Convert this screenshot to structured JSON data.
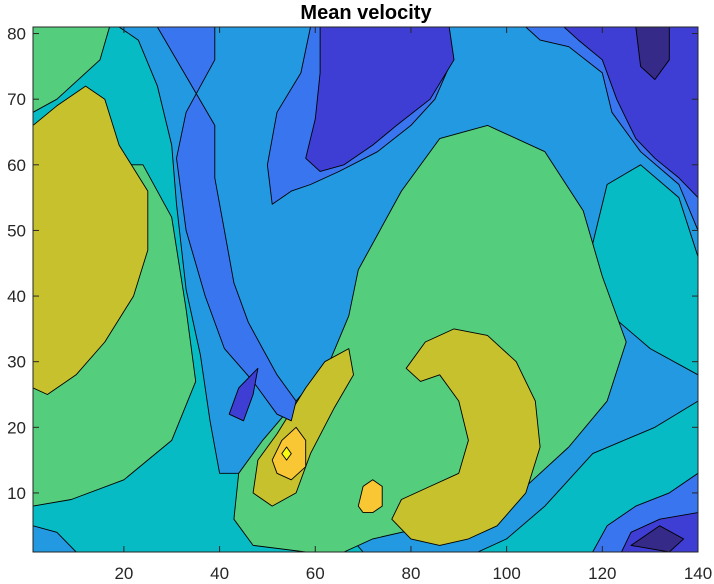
{
  "chart_data": {
    "type": "contour",
    "title": "Mean velocity",
    "xlabel": "",
    "ylabel": "",
    "xlim": [
      1,
      140
    ],
    "ylim": [
      1,
      81
    ],
    "xticks": [
      "20",
      "40",
      "60",
      "80",
      "100",
      "120",
      "140"
    ],
    "yticks": [
      "10",
      "20",
      "30",
      "40",
      "50",
      "60",
      "70",
      "80"
    ],
    "xtick_values": [
      20,
      40,
      60,
      80,
      100,
      120,
      140
    ],
    "ytick_values": [
      10,
      20,
      30,
      40,
      50,
      60,
      70,
      80
    ],
    "grid": false,
    "colormap": "parula",
    "levels": [
      {
        "level": 1,
        "color": "#352a87"
      },
      {
        "level": 2,
        "color": "#3e3dd4"
      },
      {
        "level": 3,
        "color": "#3a75f0"
      },
      {
        "level": 4,
        "color": "#2299e0"
      },
      {
        "level": 5,
        "color": "#07bbc4"
      },
      {
        "level": 6,
        "color": "#54cd7c"
      },
      {
        "level": 7,
        "color": "#c8c12e"
      },
      {
        "level": 8,
        "color": "#f9c733"
      },
      {
        "level": 9,
        "color": "#f9fb0e"
      }
    ],
    "regions": [
      {
        "level": 5,
        "points": [
          [
            1,
            81
          ],
          [
            140,
            81
          ],
          [
            140,
            1
          ],
          [
            1,
            1
          ]
        ]
      },
      {
        "level": 4,
        "points": [
          [
            19,
            81
          ],
          [
            140,
            81
          ],
          [
            140,
            46
          ],
          [
            136,
            55
          ],
          [
            128,
            60
          ],
          [
            121,
            57
          ],
          [
            118,
            48
          ],
          [
            122,
            37
          ],
          [
            130,
            32
          ],
          [
            140,
            28
          ],
          [
            140,
            24
          ],
          [
            131,
            20
          ],
          [
            118,
            16
          ],
          [
            108,
            8
          ],
          [
            100,
            3
          ],
          [
            94,
            1
          ],
          [
            70,
            1
          ],
          [
            64,
            6
          ],
          [
            56,
            10
          ],
          [
            48,
            13
          ],
          [
            40,
            13
          ],
          [
            38,
            21
          ],
          [
            36,
            31
          ],
          [
            33,
            41
          ],
          [
            31,
            54
          ],
          [
            30,
            63
          ],
          [
            27,
            72
          ],
          [
            23,
            79
          ]
        ]
      },
      {
        "level": 4,
        "points": [
          [
            1,
            1
          ],
          [
            10,
            1
          ],
          [
            6,
            4
          ],
          [
            1,
            5
          ]
        ]
      },
      {
        "level": 6,
        "points": [
          [
            1,
            81
          ],
          [
            17,
            81
          ],
          [
            15,
            76
          ],
          [
            6,
            70
          ],
          [
            1,
            68
          ]
        ]
      },
      {
        "level": 6,
        "points": [
          [
            1,
            60
          ],
          [
            10,
            60
          ],
          [
            24,
            60
          ],
          [
            30,
            52
          ],
          [
            33,
            38
          ],
          [
            35,
            27
          ],
          [
            30,
            18
          ],
          [
            20,
            12
          ],
          [
            9,
            9
          ],
          [
            1,
            8
          ]
        ]
      },
      {
        "level": 6,
        "points": [
          [
            69,
            44
          ],
          [
            78,
            56
          ],
          [
            86,
            64
          ],
          [
            96,
            66
          ],
          [
            108,
            62
          ],
          [
            116,
            53
          ],
          [
            120,
            43
          ],
          [
            125,
            33
          ],
          [
            121,
            24
          ],
          [
            113,
            17
          ],
          [
            104,
            11
          ],
          [
            95,
            7
          ],
          [
            84,
            5
          ],
          [
            72,
            3
          ],
          [
            66,
            1
          ],
          [
            58,
            1
          ],
          [
            47,
            2
          ],
          [
            43,
            6
          ],
          [
            44,
            13
          ],
          [
            49,
            18
          ],
          [
            56,
            24
          ],
          [
            63,
            30
          ],
          [
            67,
            37
          ]
        ]
      },
      {
        "level": 7,
        "points": [
          [
            1,
            66
          ],
          [
            6,
            69
          ],
          [
            12,
            72
          ],
          [
            16,
            70
          ],
          [
            19,
            63
          ],
          [
            25,
            56
          ],
          [
            25,
            47
          ],
          [
            22,
            40
          ],
          [
            16,
            33
          ],
          [
            10,
            28
          ],
          [
            4,
            25
          ],
          [
            1,
            26
          ]
        ]
      },
      {
        "level": 7,
        "points": [
          [
            79,
            29
          ],
          [
            83,
            33
          ],
          [
            89,
            35
          ],
          [
            96,
            34
          ],
          [
            102,
            30
          ],
          [
            106,
            24
          ],
          [
            107,
            17
          ],
          [
            104,
            10
          ],
          [
            98,
            5
          ],
          [
            92,
            3
          ],
          [
            86,
            2
          ],
          [
            80,
            3
          ],
          [
            76,
            6
          ],
          [
            78,
            9
          ],
          [
            84,
            11
          ],
          [
            90,
            13
          ],
          [
            92,
            18
          ],
          [
            90,
            24
          ],
          [
            86,
            28
          ],
          [
            82,
            27
          ]
        ]
      },
      {
        "level": 7,
        "points": [
          [
            48,
            15
          ],
          [
            52,
            19
          ],
          [
            58,
            26
          ],
          [
            62,
            30
          ],
          [
            67,
            32
          ],
          [
            68,
            28
          ],
          [
            64,
            23
          ],
          [
            59,
            16
          ],
          [
            56,
            10
          ],
          [
            51,
            8
          ],
          [
            47,
            10
          ]
        ]
      },
      {
        "level": 8,
        "points": [
          [
            51,
            15
          ],
          [
            53,
            18
          ],
          [
            56,
            20
          ],
          [
            58,
            18
          ],
          [
            58,
            14
          ],
          [
            55,
            12
          ],
          [
            52,
            13
          ]
        ]
      },
      {
        "level": 8,
        "points": [
          [
            69,
            8
          ],
          [
            70,
            11
          ],
          [
            72,
            12
          ],
          [
            74,
            11
          ],
          [
            74,
            8
          ],
          [
            72,
            7
          ],
          [
            70,
            7
          ]
        ]
      },
      {
        "level": 9,
        "points": [
          [
            53,
            16
          ],
          [
            54,
            17
          ],
          [
            55,
            16
          ],
          [
            54,
            15
          ]
        ]
      },
      {
        "level": 3,
        "points": [
          [
            27,
            81
          ],
          [
            39,
            81
          ],
          [
            39,
            76
          ],
          [
            33,
            68
          ],
          [
            31,
            61
          ],
          [
            33,
            50
          ],
          [
            37,
            40
          ],
          [
            41,
            32
          ],
          [
            47,
            27
          ],
          [
            52,
            22
          ],
          [
            55,
            21
          ],
          [
            56,
            24
          ],
          [
            52,
            28
          ],
          [
            49,
            32
          ],
          [
            46,
            36
          ],
          [
            43,
            42
          ],
          [
            41,
            50
          ],
          [
            39,
            58
          ],
          [
            39,
            66
          ]
        ]
      },
      {
        "level": 3,
        "points": [
          [
            59,
            81
          ],
          [
            86,
            81
          ],
          [
            88,
            75
          ],
          [
            85,
            70
          ],
          [
            80,
            66
          ],
          [
            73,
            62
          ],
          [
            65,
            59
          ],
          [
            59,
            57
          ],
          [
            55,
            56
          ],
          [
            51,
            54
          ],
          [
            50,
            60
          ],
          [
            52,
            68
          ],
          [
            57,
            74
          ]
        ]
      },
      {
        "level": 3,
        "points": [
          [
            104,
            81
          ],
          [
            140,
            81
          ],
          [
            140,
            50
          ],
          [
            136,
            57
          ],
          [
            128,
            62
          ],
          [
            122,
            68
          ],
          [
            120,
            74
          ],
          [
            113,
            78
          ],
          [
            107,
            79
          ]
        ]
      },
      {
        "level": 3,
        "points": [
          [
            118,
            1
          ],
          [
            140,
            1
          ],
          [
            140,
            13
          ],
          [
            134,
            10
          ],
          [
            127,
            8
          ],
          [
            121,
            5
          ]
        ]
      },
      {
        "level": 2,
        "points": [
          [
            61,
            81
          ],
          [
            88,
            81
          ],
          [
            89,
            76
          ],
          [
            84,
            70
          ],
          [
            77,
            66
          ],
          [
            72,
            63
          ],
          [
            66,
            60
          ],
          [
            61,
            59
          ],
          [
            58,
            61
          ],
          [
            60,
            67
          ],
          [
            61,
            74
          ]
        ]
      },
      {
        "level": 2,
        "points": [
          [
            112,
            81
          ],
          [
            140,
            81
          ],
          [
            140,
            55
          ],
          [
            136,
            58
          ],
          [
            131,
            61
          ],
          [
            127,
            64
          ],
          [
            123,
            70
          ],
          [
            120,
            76
          ],
          [
            115,
            79
          ]
        ]
      },
      {
        "level": 2,
        "points": [
          [
            124,
            1
          ],
          [
            140,
            1
          ],
          [
            140,
            7
          ],
          [
            132,
            6
          ],
          [
            126,
            4
          ]
        ]
      },
      {
        "level": 2,
        "points": [
          [
            42,
            22
          ],
          [
            44,
            26
          ],
          [
            48,
            29
          ],
          [
            47,
            25
          ],
          [
            45,
            21
          ]
        ]
      },
      {
        "level": 1,
        "points": [
          [
            127,
            81
          ],
          [
            134,
            81
          ],
          [
            134,
            76
          ],
          [
            131,
            73
          ],
          [
            128,
            75
          ]
        ]
      },
      {
        "level": 1,
        "points": [
          [
            126,
            2
          ],
          [
            132,
            5
          ],
          [
            137,
            3
          ],
          [
            134,
            1
          ]
        ]
      }
    ]
  }
}
